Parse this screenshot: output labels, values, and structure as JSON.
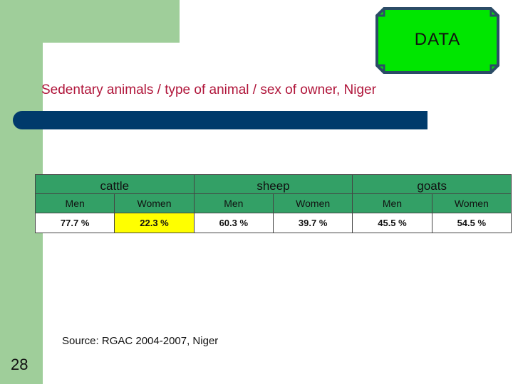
{
  "badge": {
    "label": "DATA",
    "fill": "#00e600",
    "frame": "#2b4c66"
  },
  "subtitle": "Sedentary animals / type of animal / sex of owner, Niger",
  "table": {
    "groups": [
      "cattle",
      "sheep",
      "goats"
    ],
    "sub_headers": [
      "Men",
      "Women",
      "Men",
      "Women",
      "Men",
      "Women"
    ],
    "values": [
      "77.7 %",
      "22.3 %",
      "60.3 %",
      "39.7 %",
      "45.5 %",
      "54.5 %"
    ],
    "highlight_color": "#ffff00"
  },
  "source": "Source: RGAC 2004-2007, Niger",
  "page_number": "28",
  "colors": {
    "sidebar": "#9fce9a",
    "accent_bar": "#003a6b",
    "header_green": "#33a066",
    "subtitle": "#b0153a"
  }
}
